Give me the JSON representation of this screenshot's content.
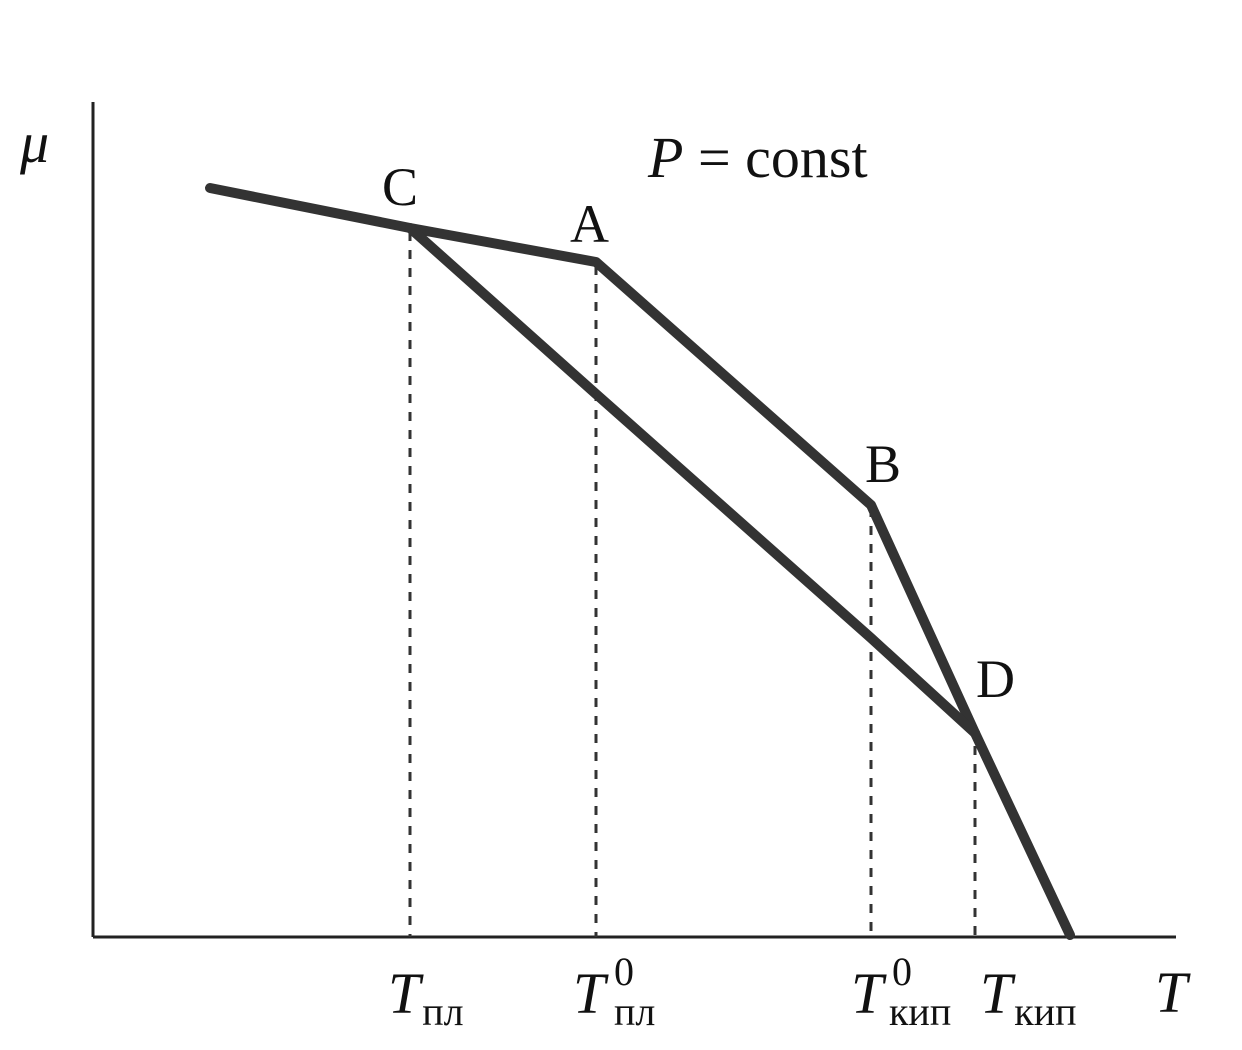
{
  "diagram": {
    "axes": {
      "y_label": "μ",
      "x_label": "T"
    },
    "condition": {
      "variable": "P",
      "operator": " = ",
      "value": "const"
    },
    "points": {
      "C": "C",
      "A": "A",
      "B": "B",
      "D": "D"
    },
    "ticks": [
      {
        "main": "T",
        "sub": "пл",
        "sup": ""
      },
      {
        "main": "T",
        "sub": "пл",
        "sup": "0"
      },
      {
        "main": "T",
        "sub": "кип",
        "sup": "0"
      },
      {
        "main": "T",
        "sub": "кип",
        "sup": ""
      }
    ],
    "curves": [
      {
        "name": "upper-branch",
        "through": [
          "C",
          "A",
          "B",
          "D"
        ]
      },
      {
        "name": "lower-branch",
        "through": [
          "C",
          "D"
        ]
      }
    ]
  }
}
